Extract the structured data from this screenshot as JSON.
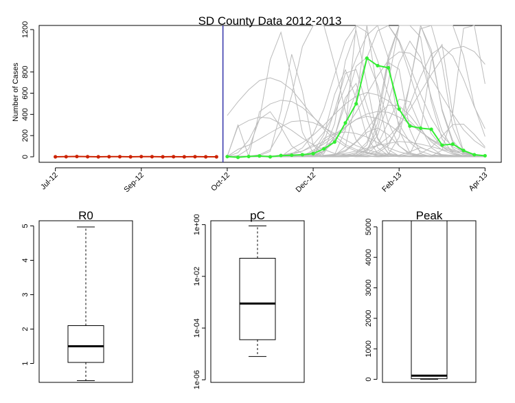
{
  "chart_data": [
    {
      "type": "line",
      "title": "SD County Data 2012-2013",
      "xlabel": "",
      "ylabel": "Number of Cases",
      "x_tick_labels": [
        "Jul-12",
        "Sep-12",
        "Oct-12",
        "Dec-12",
        "Feb-13",
        "Apr-13"
      ],
      "x_tick_weeks": [
        0,
        8,
        16,
        24,
        32,
        40
      ],
      "y_ticks": [
        0,
        200,
        400,
        600,
        800,
        1200
      ],
      "ylim": [
        0,
        1250
      ],
      "xlim": [
        -1,
        41
      ],
      "vertical_line_week": 15.6,
      "series": [
        {
          "color": "#cc2200",
          "x": [
            0,
            1,
            2,
            3,
            4,
            5,
            6,
            7,
            8,
            9,
            10,
            11,
            12,
            13,
            14,
            15
          ],
          "values": [
            0,
            1,
            3,
            1,
            0,
            1,
            1,
            0,
            2,
            1,
            0,
            1,
            0,
            1,
            0,
            0
          ]
        },
        {
          "color": "#33ee33",
          "x": [
            16,
            17,
            18,
            19,
            20,
            21,
            22,
            23,
            24,
            25,
            26,
            27,
            28,
            29,
            30,
            31,
            32,
            33,
            34,
            35,
            36,
            37,
            38,
            39,
            40
          ],
          "values": [
            2,
            -5,
            3,
            8,
            0,
            12,
            15,
            20,
            30,
            75,
            140,
            320,
            500,
            930,
            860,
            840,
            450,
            290,
            270,
            260,
            110,
            120,
            60,
            20,
            10
          ]
        }
      ],
      "background_traces_color": "#bbbbbb"
    },
    {
      "type": "boxplot",
      "title": "R0",
      "y_ticks": [
        1,
        2,
        3,
        4,
        5
      ],
      "ylim": [
        0.45,
        5.15
      ],
      "box": {
        "min": 0.5,
        "q1": 1.03,
        "median": 1.5,
        "q3": 2.1,
        "max": 4.97
      }
    },
    {
      "type": "boxplot",
      "title": "pC",
      "log_scale": true,
      "y_ticks": [
        "1e-06",
        "1e-04",
        "1e-02",
        "1e+00"
      ],
      "y_tick_log10": [
        -6,
        -4,
        -2,
        0
      ],
      "ylim_log10": [
        -6.1,
        0.15
      ],
      "box": {
        "min_log10": -5.1,
        "q1_log10": -4.45,
        "median_log10": -3.05,
        "q3_log10": -1.3,
        "max_log10": -0.05
      }
    },
    {
      "type": "boxplot",
      "title": "Peak",
      "y_ticks": [
        0,
        1000,
        2000,
        3000,
        4000,
        5000
      ],
      "ylim": [
        -100,
        5200
      ],
      "box": {
        "min": 0,
        "q1": 20,
        "median": 120,
        "q3": 5200,
        "max": 5200
      }
    }
  ]
}
